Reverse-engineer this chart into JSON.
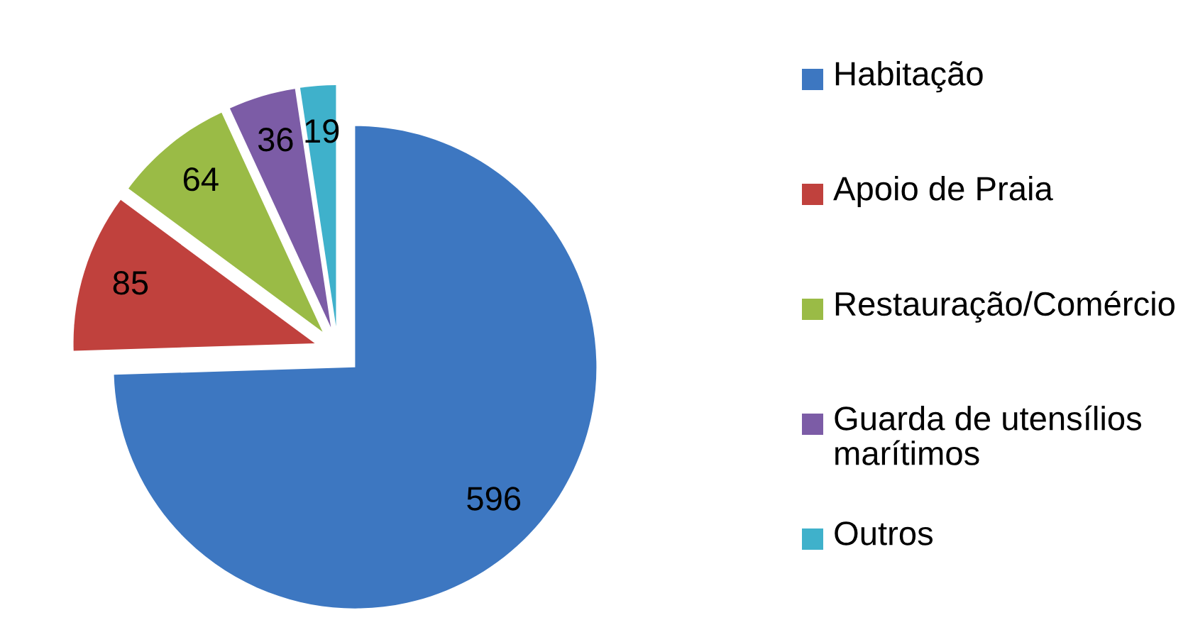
{
  "chart_data": {
    "type": "pie",
    "categories": [
      "Habitação",
      "Apoio de Praia",
      "Restauração/Comércio",
      "Guarda de utensílios marítimos",
      "Outros"
    ],
    "values": [
      596,
      85,
      64,
      36,
      19
    ],
    "colors": [
      "#3d77c1",
      "#c0413d",
      "#9abb46",
      "#7c5ca6",
      "#3fb1cb"
    ],
    "data_labels": true,
    "legend": "right"
  }
}
